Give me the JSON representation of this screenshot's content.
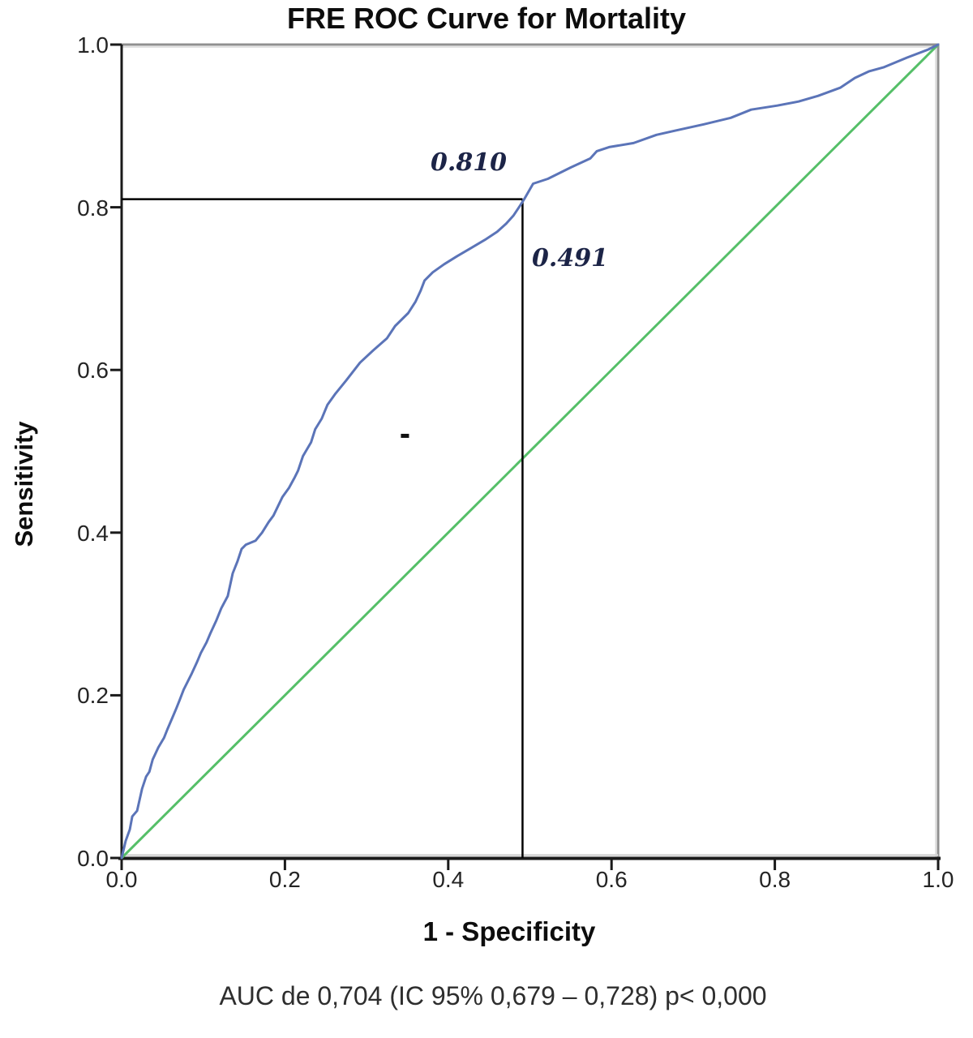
{
  "chart_data": {
    "type": "line",
    "subtype": "roc-curve",
    "title": "FRE ROC Curve for Mortality",
    "xlabel": "1 - Specificity",
    "ylabel": "Sensitivity",
    "caption": "AUC de 0,704 (IC 95% 0,679 – 0,728) p< 0,000",
    "xlim": [
      0.0,
      1.0
    ],
    "ylim": [
      0.0,
      1.0
    ],
    "xticks": [
      0.0,
      0.2,
      0.4,
      0.6,
      0.8,
      1.0
    ],
    "yticks": [
      0.0,
      0.2,
      0.4,
      0.6,
      0.8,
      1.0
    ],
    "xtick_labels": [
      "0.0",
      "0.2",
      "0.4",
      "0.6",
      "0.8",
      "1.0"
    ],
    "ytick_labels": [
      "0.0",
      "0.2",
      "0.4",
      "0.6",
      "0.8",
      "1.0"
    ],
    "grid": false,
    "legend": "none",
    "colors": {
      "roc_curve": "#5b74b8",
      "reference_line": "#55bf68",
      "threshold_lines": "#000000",
      "annotation_text": "#1c2447",
      "axis_line": "#1a1a1a",
      "outer_border": "#909090"
    },
    "series": [
      {
        "name": "ROC curve",
        "color": "#5b74b8",
        "points": [
          [
            0.0,
            0.0
          ],
          [
            0.005,
            0.021
          ],
          [
            0.01,
            0.035
          ],
          [
            0.013,
            0.051
          ],
          [
            0.019,
            0.058
          ],
          [
            0.025,
            0.085
          ],
          [
            0.03,
            0.1
          ],
          [
            0.034,
            0.106
          ],
          [
            0.038,
            0.121
          ],
          [
            0.045,
            0.136
          ],
          [
            0.052,
            0.148
          ],
          [
            0.056,
            0.158
          ],
          [
            0.062,
            0.172
          ],
          [
            0.067,
            0.184
          ],
          [
            0.071,
            0.194
          ],
          [
            0.076,
            0.207
          ],
          [
            0.081,
            0.217
          ],
          [
            0.086,
            0.227
          ],
          [
            0.092,
            0.24
          ],
          [
            0.097,
            0.252
          ],
          [
            0.104,
            0.265
          ],
          [
            0.109,
            0.277
          ],
          [
            0.116,
            0.292
          ],
          [
            0.122,
            0.307
          ],
          [
            0.13,
            0.322
          ],
          [
            0.136,
            0.35
          ],
          [
            0.142,
            0.365
          ],
          [
            0.147,
            0.38
          ],
          [
            0.152,
            0.385
          ],
          [
            0.164,
            0.39
          ],
          [
            0.172,
            0.4
          ],
          [
            0.18,
            0.413
          ],
          [
            0.186,
            0.421
          ],
          [
            0.197,
            0.444
          ],
          [
            0.205,
            0.455
          ],
          [
            0.212,
            0.468
          ],
          [
            0.216,
            0.476
          ],
          [
            0.222,
            0.494
          ],
          [
            0.232,
            0.511
          ],
          [
            0.237,
            0.527
          ],
          [
            0.245,
            0.54
          ],
          [
            0.252,
            0.557
          ],
          [
            0.262,
            0.571
          ],
          [
            0.275,
            0.587
          ],
          [
            0.292,
            0.609
          ],
          [
            0.308,
            0.624
          ],
          [
            0.325,
            0.639
          ],
          [
            0.335,
            0.654
          ],
          [
            0.341,
            0.66
          ],
          [
            0.351,
            0.67
          ],
          [
            0.36,
            0.684
          ],
          [
            0.366,
            0.697
          ],
          [
            0.371,
            0.71
          ],
          [
            0.381,
            0.72
          ],
          [
            0.395,
            0.73
          ],
          [
            0.411,
            0.74
          ],
          [
            0.428,
            0.75
          ],
          [
            0.445,
            0.76
          ],
          [
            0.46,
            0.77
          ],
          [
            0.471,
            0.78
          ],
          [
            0.48,
            0.79
          ],
          [
            0.488,
            0.802
          ],
          [
            0.493,
            0.81
          ],
          [
            0.504,
            0.829
          ],
          [
            0.522,
            0.835
          ],
          [
            0.55,
            0.849
          ],
          [
            0.574,
            0.86
          ],
          [
            0.582,
            0.869
          ],
          [
            0.597,
            0.874
          ],
          [
            0.627,
            0.879
          ],
          [
            0.655,
            0.889
          ],
          [
            0.677,
            0.894
          ],
          [
            0.713,
            0.902
          ],
          [
            0.746,
            0.91
          ],
          [
            0.771,
            0.92
          ],
          [
            0.803,
            0.925
          ],
          [
            0.829,
            0.93
          ],
          [
            0.853,
            0.937
          ],
          [
            0.88,
            0.947
          ],
          [
            0.898,
            0.959
          ],
          [
            0.915,
            0.967
          ],
          [
            0.933,
            0.972
          ],
          [
            0.962,
            0.984
          ],
          [
            0.988,
            0.994
          ],
          [
            1.0,
            1.0
          ]
        ]
      },
      {
        "name": "Reference diagonal",
        "color": "#55bf68",
        "points": [
          [
            0.0,
            0.0
          ],
          [
            1.0,
            1.0
          ]
        ]
      }
    ],
    "threshold_marker": {
      "x": 0.491,
      "y": 0.81,
      "x_label": "0.491",
      "y_label": "0.810"
    },
    "stray_mark": {
      "x": 0.347,
      "y": 0.519
    },
    "auc_text": "AUC de 0,704 (IC 95% 0,679 – 0,728) p< 0,000"
  }
}
